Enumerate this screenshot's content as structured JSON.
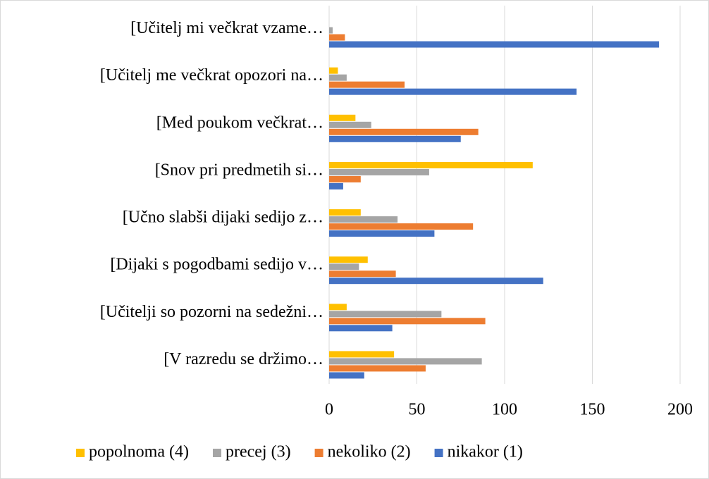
{
  "chart_data": {
    "type": "hbar",
    "categories": [
      "[Učitelj mi večkrat vzame…",
      "[Učitelj me večkrat opozori na…",
      "[Med poukom večkrat…",
      "[Snov pri predmetih si…",
      "[Učno slabši dijaki sedijo z…",
      "[Dijaki s pogodbami sedijo v…",
      "[Učitelji so pozorni na sedežni…",
      "[V razredu se držimo…"
    ],
    "series": [
      {
        "name": "popolnoma (4)",
        "color": "#ffc000",
        "values": [
          0,
          5,
          15,
          116,
          18,
          22,
          10,
          37
        ]
      },
      {
        "name": "precej (3)",
        "color": "#a5a5a5",
        "values": [
          2,
          10,
          24,
          57,
          39,
          17,
          64,
          87
        ]
      },
      {
        "name": "nekoliko (2)",
        "color": "#ed7d31",
        "values": [
          9,
          43,
          85,
          18,
          82,
          38,
          89,
          55
        ]
      },
      {
        "name": "nikakor (1)",
        "color": "#4472c4",
        "values": [
          188,
          141,
          75,
          8,
          60,
          122,
          36,
          20
        ]
      }
    ],
    "xlim": [
      0,
      200
    ],
    "xticks": [
      0,
      50,
      100,
      150,
      200
    ],
    "grid": true,
    "legend": "bottom"
  }
}
